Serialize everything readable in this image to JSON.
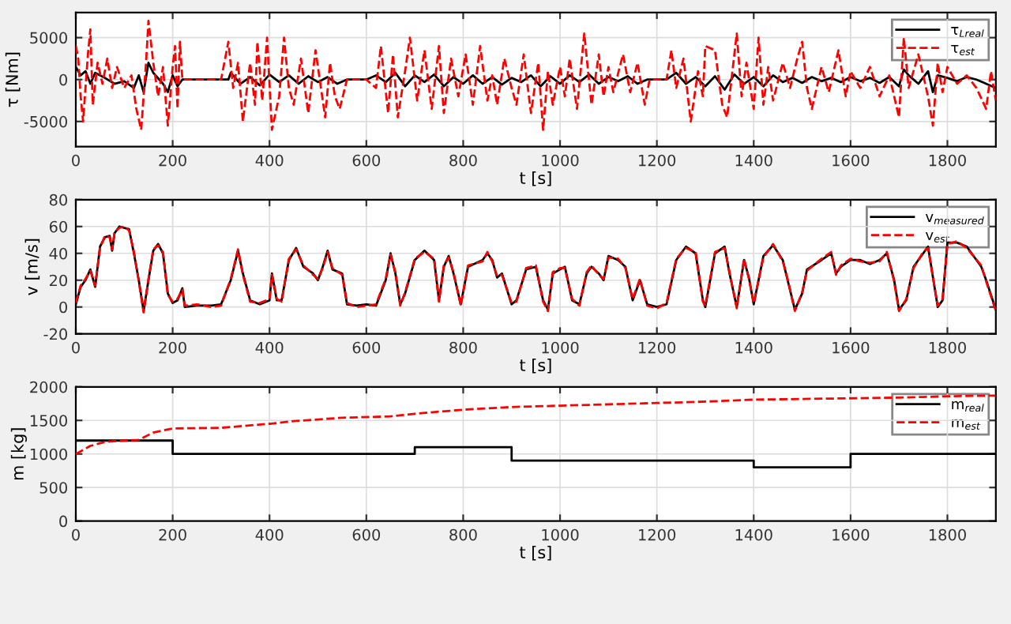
{
  "chart_data": [
    {
      "type": "line",
      "xlabel": "t [s]",
      "ylabel": "τ [Nm]",
      "xlim": [
        0,
        1900
      ],
      "xticks": [
        0,
        200,
        400,
        600,
        800,
        1000,
        1200,
        1400,
        1600,
        1800
      ],
      "ylim": [
        -8000,
        8000
      ],
      "yticks": [
        -5000,
        0,
        5000
      ],
      "grid": true,
      "legend": "top right",
      "series": [
        {
          "name": "τ$_{Lreal}$",
          "color": "#000000",
          "line_style": "solid",
          "x": [
            0,
            10,
            20,
            30,
            40,
            60,
            80,
            100,
            120,
            130,
            140,
            150,
            160,
            180,
            190,
            200,
            210,
            220,
            300,
            315,
            320,
            340,
            360,
            380,
            400,
            420,
            440,
            460,
            480,
            500,
            520,
            540,
            560,
            600,
            620,
            640,
            660,
            680,
            700,
            720,
            740,
            760,
            780,
            800,
            820,
            840,
            860,
            880,
            900,
            920,
            940,
            960,
            980,
            1000,
            1020,
            1040,
            1060,
            1080,
            1100,
            1120,
            1140,
            1160,
            1180,
            1220,
            1240,
            1260,
            1280,
            1300,
            1320,
            1340,
            1360,
            1380,
            1400,
            1420,
            1440,
            1460,
            1480,
            1500,
            1520,
            1540,
            1560,
            1580,
            1600,
            1620,
            1640,
            1660,
            1680,
            1700,
            1710,
            1720,
            1740,
            1760,
            1770,
            1780,
            1800,
            1820,
            1840,
            1860,
            1880,
            1900
          ],
          "values": [
            1500,
            500,
            1000,
            -500,
            800,
            200,
            -500,
            -200,
            -1000,
            500,
            -1500,
            2000,
            800,
            -500,
            -1500,
            500,
            -800,
            0,
            0,
            0,
            800,
            -500,
            300,
            -700,
            600,
            -300,
            500,
            -500,
            400,
            -300,
            300,
            -500,
            0,
            0,
            500,
            -300,
            800,
            -800,
            500,
            -300,
            600,
            -800,
            300,
            -500,
            500,
            -500,
            300,
            -600,
            200,
            -300,
            500,
            -800,
            400,
            -500,
            500,
            -300,
            600,
            -500,
            300,
            -200,
            400,
            -500,
            0,
            0,
            800,
            -500,
            300,
            -800,
            400,
            -1200,
            600,
            -500,
            300,
            -800,
            500,
            -300,
            200,
            -400,
            300,
            -200,
            200,
            -300,
            300,
            -200,
            200,
            -400,
            300,
            -800,
            1200,
            500,
            -500,
            1000,
            -1500,
            500,
            200,
            -200,
            300,
            0,
            -500,
            -1000
          ]
        },
        {
          "name": "τ$_{est}$",
          "color": "#ff0000",
          "line_style": "dashed",
          "x": [
            0,
            5,
            10,
            15,
            25,
            30,
            35,
            45,
            55,
            65,
            75,
            85,
            100,
            115,
            125,
            135,
            145,
            150,
            160,
            170,
            180,
            190,
            200,
            205,
            210,
            215,
            220,
            300,
            315,
            325,
            335,
            345,
            360,
            370,
            375,
            385,
            395,
            405,
            420,
            430,
            440,
            450,
            465,
            480,
            495,
            505,
            515,
            525,
            535,
            545,
            560,
            600,
            620,
            630,
            645,
            655,
            665,
            680,
            690,
            705,
            720,
            735,
            750,
            760,
            775,
            790,
            805,
            820,
            835,
            850,
            860,
            870,
            885,
            900,
            910,
            925,
            940,
            955,
            965,
            975,
            985,
            1000,
            1010,
            1020,
            1035,
            1050,
            1065,
            1080,
            1090,
            1100,
            1110,
            1130,
            1145,
            1160,
            1175,
            1185,
            1220,
            1230,
            1240,
            1255,
            1270,
            1285,
            1295,
            1300,
            1320,
            1335,
            1345,
            1365,
            1375,
            1385,
            1400,
            1410,
            1420,
            1430,
            1440,
            1460,
            1475,
            1490,
            1500,
            1510,
            1520,
            1540,
            1555,
            1575,
            1590,
            1600,
            1620,
            1640,
            1660,
            1680,
            1700,
            1710,
            1720,
            1740,
            1760,
            1770,
            1780,
            1790,
            1800,
            1820,
            1840,
            1860,
            1880,
            1890,
            1900
          ],
          "values": [
            4000,
            2500,
            -2000,
            -5000,
            3000,
            6000,
            -3000,
            2000,
            -500,
            2500,
            -1000,
            1500,
            -1000,
            500,
            -3500,
            -6000,
            2000,
            7000,
            2000,
            -2000,
            1500,
            -5500,
            1500,
            4000,
            -3500,
            4500,
            0,
            0,
            4500,
            -1000,
            2000,
            -5000,
            2000,
            -3000,
            4500,
            -2500,
            5000,
            -6000,
            -2000,
            5000,
            -1000,
            -3000,
            2500,
            -4000,
            3500,
            -500,
            -4500,
            2000,
            -2000,
            -3500,
            0,
            0,
            -1000,
            4000,
            -4000,
            3000,
            -4500,
            1000,
            5000,
            -2500,
            3500,
            -3500,
            4000,
            -4000,
            2500,
            -2000,
            3000,
            -3000,
            4000,
            -2500,
            500,
            -3000,
            2500,
            -1000,
            -3000,
            3000,
            -4000,
            2000,
            -6000,
            1000,
            -3000,
            1500,
            -2000,
            2500,
            -3500,
            5500,
            -3000,
            3000,
            -2000,
            1500,
            -1500,
            3000,
            -1500,
            2000,
            -3000,
            0,
            0,
            3500,
            -1000,
            2500,
            -5000,
            1000,
            -2000,
            4000,
            3500,
            -3000,
            -4500,
            5500,
            -2000,
            2000,
            -3500,
            5000,
            -3000,
            1500,
            -2500,
            2000,
            -1000,
            2500,
            4500,
            -1000,
            -3500,
            1500,
            -1500,
            3500,
            -2000,
            1000,
            -1000,
            1500,
            -2000,
            500,
            -4500,
            5000,
            -1000,
            3000,
            -2000,
            -5500,
            2000,
            -1500,
            1500,
            -500,
            500,
            -1000,
            -3500,
            1000,
            -2500
          ]
        }
      ]
    },
    {
      "type": "line",
      "xlabel": "t [s]",
      "ylabel": "v [m/s]",
      "xlim": [
        0,
        1900
      ],
      "xticks": [
        0,
        200,
        400,
        600,
        800,
        1000,
        1200,
        1400,
        1600,
        1800
      ],
      "ylim": [
        -20,
        80
      ],
      "yticks": [
        -20,
        0,
        20,
        40,
        60,
        80
      ],
      "grid": true,
      "legend": "top right",
      "series": [
        {
          "name": "v$_{measured}$",
          "color": "#000000",
          "line_style": "solid",
          "x": [
            0,
            10,
            20,
            30,
            40,
            50,
            60,
            70,
            75,
            80,
            90,
            100,
            110,
            120,
            130,
            140,
            150,
            160,
            170,
            180,
            190,
            200,
            210,
            220,
            225,
            250,
            280,
            300,
            320,
            335,
            345,
            360,
            380,
            400,
            405,
            415,
            425,
            440,
            455,
            470,
            490,
            500,
            510,
            520,
            530,
            550,
            560,
            580,
            600,
            620,
            640,
            650,
            660,
            670,
            680,
            700,
            720,
            740,
            750,
            760,
            770,
            780,
            795,
            810,
            840,
            850,
            860,
            870,
            880,
            900,
            910,
            930,
            950,
            965,
            975,
            985,
            1000,
            1010,
            1025,
            1040,
            1055,
            1065,
            1080,
            1090,
            1100,
            1120,
            1135,
            1150,
            1165,
            1180,
            1200,
            1220,
            1240,
            1260,
            1280,
            1295,
            1300,
            1320,
            1340,
            1350,
            1365,
            1380,
            1390,
            1400,
            1420,
            1440,
            1460,
            1470,
            1485,
            1500,
            1510,
            1540,
            1560,
            1570,
            1580,
            1600,
            1620,
            1640,
            1660,
            1675,
            1690,
            1700,
            1715,
            1730,
            1750,
            1760,
            1780,
            1790,
            1800,
            1820,
            1840,
            1870,
            1880,
            1900
          ],
          "values": [
            2,
            15,
            20,
            28,
            15,
            45,
            52,
            53,
            42,
            55,
            60,
            59,
            58,
            40,
            20,
            -3,
            20,
            42,
            47,
            40,
            10,
            3,
            5,
            14,
            0,
            1,
            1,
            2,
            20,
            42,
            25,
            5,
            2,
            5,
            25,
            5,
            5,
            35,
            44,
            30,
            25,
            20,
            30,
            42,
            28,
            25,
            2,
            1,
            2,
            1,
            20,
            40,
            25,
            2,
            10,
            35,
            42,
            35,
            5,
            30,
            38,
            25,
            2,
            30,
            35,
            40,
            35,
            22,
            25,
            2,
            5,
            28,
            30,
            5,
            -2,
            25,
            28,
            30,
            5,
            2,
            25,
            30,
            25,
            20,
            38,
            35,
            30,
            5,
            20,
            2,
            0,
            2,
            35,
            45,
            40,
            5,
            0,
            40,
            45,
            25,
            0,
            35,
            22,
            2,
            38,
            46,
            35,
            20,
            -2,
            10,
            28,
            35,
            40,
            25,
            30,
            35,
            35,
            32,
            35,
            40,
            20,
            -2,
            5,
            30,
            40,
            45,
            0,
            5,
            48,
            48,
            45,
            30,
            20,
            -2
          ]
        },
        {
          "name": "v$_{est}$",
          "color": "#ff0000",
          "line_style": "dashed",
          "x": [
            0,
            10,
            20,
            30,
            40,
            50,
            60,
            70,
            75,
            80,
            90,
            100,
            110,
            120,
            130,
            140,
            150,
            160,
            170,
            180,
            190,
            200,
            210,
            220,
            225,
            250,
            280,
            300,
            320,
            335,
            345,
            360,
            380,
            400,
            405,
            415,
            425,
            440,
            455,
            470,
            490,
            500,
            510,
            520,
            530,
            550,
            560,
            580,
            600,
            620,
            640,
            650,
            660,
            670,
            680,
            700,
            720,
            740,
            750,
            760,
            770,
            780,
            795,
            810,
            840,
            850,
            860,
            870,
            880,
            900,
            910,
            930,
            950,
            965,
            975,
            985,
            1000,
            1010,
            1025,
            1040,
            1055,
            1065,
            1080,
            1090,
            1100,
            1120,
            1135,
            1150,
            1165,
            1180,
            1200,
            1220,
            1240,
            1260,
            1280,
            1295,
            1300,
            1320,
            1340,
            1350,
            1365,
            1380,
            1390,
            1400,
            1420,
            1440,
            1460,
            1470,
            1485,
            1500,
            1510,
            1540,
            1560,
            1570,
            1580,
            1600,
            1620,
            1640,
            1660,
            1675,
            1690,
            1700,
            1715,
            1730,
            1750,
            1760,
            1780,
            1790,
            1800,
            1820,
            1840,
            1870,
            1880,
            1900
          ],
          "values": [
            3,
            16,
            21,
            27,
            16,
            44,
            53,
            52,
            43,
            56,
            59,
            60,
            57,
            41,
            19,
            -4,
            21,
            43,
            46,
            41,
            9,
            4,
            6,
            13,
            1,
            2,
            0,
            1,
            21,
            43,
            24,
            4,
            3,
            6,
            24,
            6,
            4,
            36,
            43,
            31,
            24,
            21,
            29,
            41,
            29,
            24,
            3,
            0,
            1,
            2,
            21,
            39,
            26,
            1,
            11,
            36,
            41,
            36,
            4,
            31,
            37,
            26,
            1,
            31,
            34,
            41,
            34,
            23,
            24,
            3,
            4,
            29,
            31,
            4,
            -3,
            26,
            29,
            29,
            6,
            1,
            26,
            31,
            24,
            21,
            37,
            36,
            29,
            6,
            21,
            1,
            -1,
            3,
            36,
            44,
            41,
            4,
            1,
            41,
            44,
            26,
            -1,
            36,
            21,
            3,
            37,
            47,
            34,
            21,
            -3,
            11,
            27,
            36,
            41,
            24,
            31,
            36,
            34,
            33,
            34,
            41,
            19,
            -3,
            6,
            29,
            41,
            44,
            1,
            6,
            47,
            49,
            44,
            31,
            19,
            -3
          ]
        }
      ]
    },
    {
      "type": "line",
      "xlabel": "t [s]",
      "ylabel": "m [kg]",
      "xlim": [
        0,
        1900
      ],
      "xticks": [
        0,
        200,
        400,
        600,
        800,
        1000,
        1200,
        1400,
        1600,
        1800
      ],
      "ylim": [
        0,
        2000
      ],
      "yticks": [
        0,
        500,
        1000,
        1500,
        2000
      ],
      "grid": true,
      "legend": "top right",
      "series": [
        {
          "name": "m$_{real}$",
          "type": "step",
          "color": "#000000",
          "line_style": "solid",
          "x": [
            0,
            200,
            700,
            900,
            1400,
            1600,
            1900
          ],
          "values": [
            1200,
            1000,
            1100,
            900,
            800,
            1000,
            1000
          ]
        },
        {
          "name": "m$_{est}$",
          "color": "#ff0000",
          "line_style": "dashed",
          "x": [
            0,
            30,
            60,
            100,
            130,
            160,
            200,
            300,
            400,
            450,
            550,
            650,
            700,
            800,
            900,
            1000,
            1100,
            1200,
            1300,
            1400,
            1500,
            1600,
            1700,
            1750,
            1800,
            1900
          ],
          "values": [
            1000,
            1120,
            1180,
            1200,
            1210,
            1320,
            1380,
            1390,
            1450,
            1490,
            1540,
            1560,
            1600,
            1660,
            1700,
            1720,
            1740,
            1760,
            1780,
            1810,
            1820,
            1830,
            1840,
            1850,
            1860,
            1870
          ]
        }
      ]
    }
  ]
}
